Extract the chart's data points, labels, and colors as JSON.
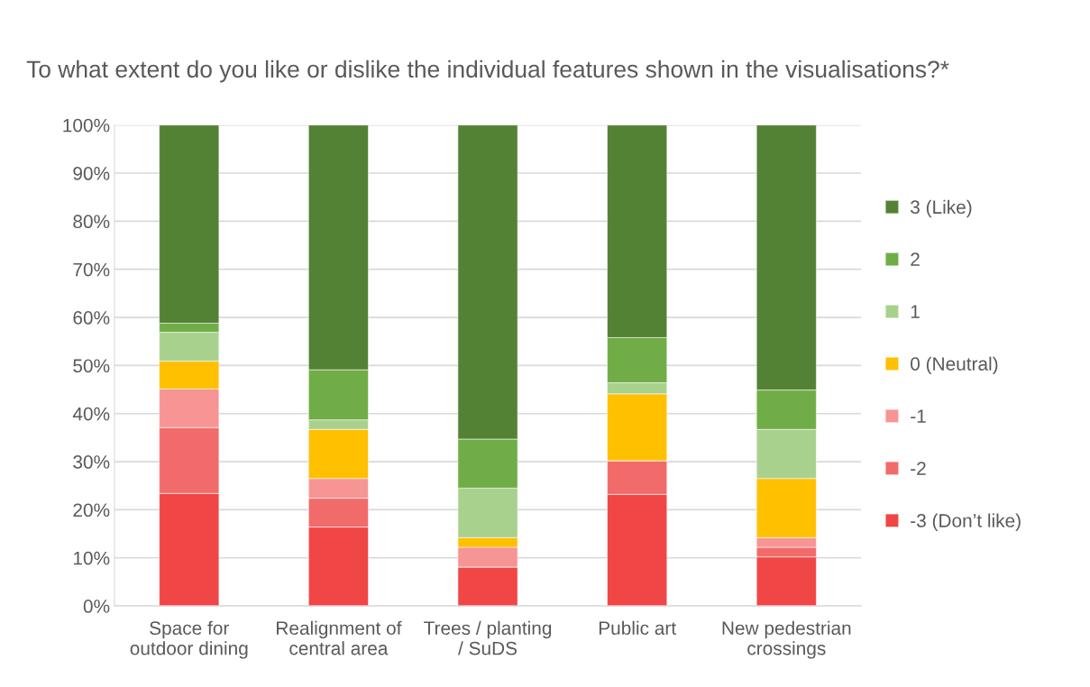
{
  "chart_data": {
    "type": "bar",
    "stacked": true,
    "title": "To what extent do you like or dislike the individual features shown in the visualisations?*",
    "categories": [
      "Space for\noutdoor dining",
      "Realignment of\ncentral area",
      "Trees / planting\n/ SuDS",
      "Public art",
      "New pedestrian\ncrossings"
    ],
    "series": [
      {
        "name": "-3 (Don’t like)",
        "color": "#f14646",
        "values": [
          23.4,
          16.4,
          8.1,
          23.2,
          10.2
        ]
      },
      {
        "name": "-2",
        "color": "#f26b6b",
        "values": [
          13.7,
          6.0,
          0,
          7.0,
          2.0
        ]
      },
      {
        "name": "-1",
        "color": "#f79494",
        "values": [
          8.0,
          4.1,
          4.1,
          0,
          2.0
        ]
      },
      {
        "name": "0 (Neutral)",
        "color": "#ffc000",
        "values": [
          5.8,
          10.2,
          2.0,
          13.9,
          12.3
        ]
      },
      {
        "name": "1",
        "color": "#a9d18e",
        "values": [
          6.0,
          2.0,
          10.3,
          2.3,
          10.2
        ]
      },
      {
        "name": "2",
        "color": "#70ad47",
        "values": [
          1.9,
          10.4,
          10.2,
          9.4,
          8.2
        ]
      },
      {
        "name": "3 (Like)",
        "color": "#548235",
        "values": [
          41.2,
          50.9,
          65.3,
          44.2,
          55.1
        ]
      }
    ],
    "ylim": [
      0,
      100
    ],
    "yticks": [
      {
        "value": 0,
        "label": "0%"
      },
      {
        "value": 10,
        "label": "10%"
      },
      {
        "value": 20,
        "label": "20%"
      },
      {
        "value": 30,
        "label": "30%"
      },
      {
        "value": 40,
        "label": "40%"
      },
      {
        "value": 50,
        "label": "50%"
      },
      {
        "value": 60,
        "label": "60%"
      },
      {
        "value": 70,
        "label": "70%"
      },
      {
        "value": 80,
        "label": "80%"
      },
      {
        "value": 90,
        "label": "90%"
      },
      {
        "value": 100,
        "label": "100%"
      }
    ],
    "grid": "y",
    "legend": "right"
  }
}
